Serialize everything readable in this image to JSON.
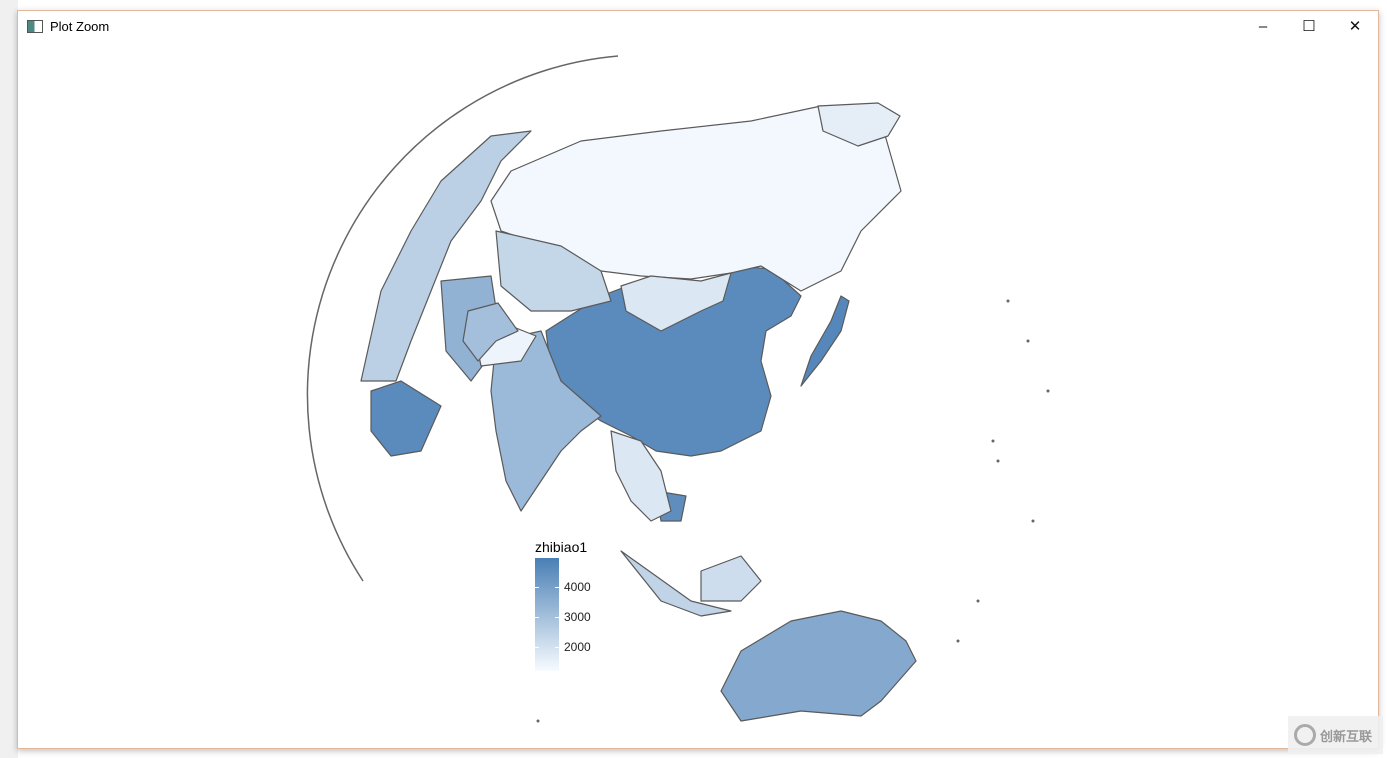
{
  "window": {
    "title": "Plot Zoom",
    "minimize": "–",
    "maximize": "☐",
    "close": "✕"
  },
  "legend": {
    "title": "zhibiao1",
    "ticks": [
      "4000",
      "3000",
      "2000"
    ],
    "tick_values": [
      4000,
      3000,
      2000
    ],
    "range": [
      1200,
      4950
    ],
    "low_color": "#f7fbff",
    "high_color": "#4a7fb5"
  },
  "map_data": {
    "projection": "orthographic",
    "center": "Asia",
    "fill_variable": "zhibiao1",
    "regions": [
      {
        "region": "China",
        "value": 4600
      },
      {
        "region": "Russia",
        "value": 1300
      },
      {
        "region": "Mongolia",
        "value": 1800
      },
      {
        "region": "Kazakhstan",
        "value": 2300
      },
      {
        "region": "India",
        "value": 3200
      },
      {
        "region": "Australia",
        "value": 3700
      },
      {
        "region": "Japan",
        "value": 4700
      },
      {
        "region": "Cambodia",
        "value": 4500
      },
      {
        "region": "Indochina",
        "value": 1800
      },
      {
        "region": "Iran",
        "value": 3400
      },
      {
        "region": "Afghanistan",
        "value": 1400
      },
      {
        "region": "Saudi Arabia",
        "value": 4600
      },
      {
        "region": "Indonesia",
        "value": 2400
      },
      {
        "region": "Borneo",
        "value": 2100
      },
      {
        "region": "Europe",
        "value": 2500
      },
      {
        "region": "Alaska",
        "value": 1600
      },
      {
        "region": "Pakistan",
        "value": 3000
      }
    ]
  },
  "watermark": {
    "text": "创新互联"
  }
}
